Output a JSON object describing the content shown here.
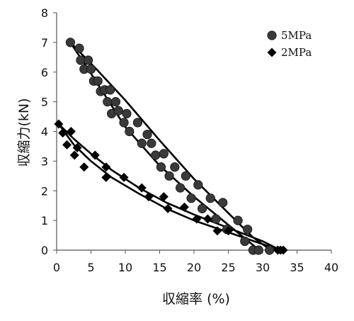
{
  "chart_data": {
    "type": "scatter",
    "xlabel": "収縮率 (%)",
    "ylabel": "収縮力(kN)",
    "xlim": [
      0,
      40
    ],
    "ylim": [
      0,
      8
    ],
    "xticks": [
      0,
      5,
      10,
      15,
      20,
      25,
      30,
      35,
      40
    ],
    "yticks": [
      0,
      1,
      2,
      3,
      4,
      5,
      6,
      7,
      8
    ],
    "grid": false,
    "legend": "top-right",
    "series": [
      {
        "name": "5MPa",
        "marker": "circle",
        "color": "#3a3a3a",
        "points": [
          [
            2.0,
            7.0
          ],
          [
            3.3,
            6.8
          ],
          [
            3.5,
            6.4
          ],
          [
            4.0,
            6.1
          ],
          [
            4.6,
            6.4
          ],
          [
            5.0,
            6.1
          ],
          [
            5.4,
            5.7
          ],
          [
            6.0,
            5.7
          ],
          [
            6.4,
            5.35
          ],
          [
            7.0,
            5.4
          ],
          [
            7.4,
            5.0
          ],
          [
            7.8,
            5.4
          ],
          [
            8.0,
            4.6
          ],
          [
            8.6,
            5.0
          ],
          [
            9.0,
            4.7
          ],
          [
            9.8,
            4.3
          ],
          [
            10.2,
            4.6
          ],
          [
            10.6,
            4.0
          ],
          [
            11.8,
            4.3
          ],
          [
            12.4,
            3.6
          ],
          [
            13.2,
            3.9
          ],
          [
            13.8,
            3.6
          ],
          [
            14.4,
            3.2
          ],
          [
            15.2,
            2.8
          ],
          [
            15.6,
            3.25
          ],
          [
            16.4,
            2.5
          ],
          [
            17.2,
            2.8
          ],
          [
            18.0,
            2.1
          ],
          [
            18.8,
            2.5
          ],
          [
            19.6,
            1.75
          ],
          [
            20.6,
            2.2
          ],
          [
            21.2,
            1.4
          ],
          [
            22.4,
            1.75
          ],
          [
            23.2,
            1.05
          ],
          [
            24.2,
            1.6
          ],
          [
            24.8,
            0.7
          ],
          [
            26.4,
            1.0
          ],
          [
            27.4,
            0.3
          ],
          [
            27.8,
            0.7
          ],
          [
            28.6,
            0.0
          ],
          [
            29.4,
            0.0
          ],
          [
            31.0,
            0.0
          ]
        ],
        "fit_upper": [
          [
            2.0,
            7.0
          ],
          [
            6.0,
            6.05
          ],
          [
            10.0,
            5.05
          ],
          [
            15.0,
            3.7
          ],
          [
            20.0,
            2.4
          ],
          [
            25.0,
            1.25
          ],
          [
            28.5,
            0.45
          ],
          [
            31.2,
            0.0
          ]
        ],
        "fit_lower": [
          [
            2.0,
            7.0
          ],
          [
            5.0,
            5.95
          ],
          [
            10.0,
            4.15
          ],
          [
            15.0,
            2.85
          ],
          [
            20.0,
            1.8
          ],
          [
            25.0,
            0.85
          ],
          [
            29.5,
            0.0
          ]
        ]
      },
      {
        "name": "2MPa",
        "marker": "diamond",
        "color": "#000000",
        "points": [
          [
            0.3,
            4.25
          ],
          [
            0.9,
            3.95
          ],
          [
            1.5,
            3.55
          ],
          [
            2.1,
            4.0
          ],
          [
            2.6,
            3.2
          ],
          [
            3.0,
            3.45
          ],
          [
            4.0,
            2.8
          ],
          [
            5.6,
            3.2
          ],
          [
            7.2,
            2.8
          ],
          [
            7.2,
            2.45
          ],
          [
            9.8,
            2.45
          ],
          [
            12.4,
            2.1
          ],
          [
            13.4,
            1.8
          ],
          [
            15.6,
            1.8
          ],
          [
            16.2,
            1.4
          ],
          [
            18.6,
            1.45
          ],
          [
            20.4,
            1.05
          ],
          [
            22.0,
            1.05
          ],
          [
            23.4,
            0.65
          ],
          [
            25.0,
            0.65
          ],
          [
            32.2,
            0.0
          ],
          [
            32.6,
            0.0
          ],
          [
            33.0,
            0.0
          ]
        ],
        "fit_upper": [
          [
            0.3,
            4.25
          ],
          [
            2.5,
            3.75
          ],
          [
            5.0,
            3.25
          ],
          [
            8.0,
            2.7
          ],
          [
            12.0,
            2.1
          ],
          [
            16.0,
            1.6
          ],
          [
            20.0,
            1.2
          ],
          [
            25.0,
            0.75
          ],
          [
            30.0,
            0.3
          ],
          [
            32.6,
            0.0
          ]
        ],
        "fit_lower": [
          [
            0.3,
            4.25
          ],
          [
            2.5,
            3.55
          ],
          [
            5.0,
            3.0
          ],
          [
            8.0,
            2.45
          ],
          [
            12.0,
            1.9
          ],
          [
            16.0,
            1.4
          ],
          [
            20.0,
            1.0
          ],
          [
            25.0,
            0.6
          ],
          [
            30.0,
            0.2
          ],
          [
            32.6,
            0.0
          ]
        ]
      }
    ]
  }
}
